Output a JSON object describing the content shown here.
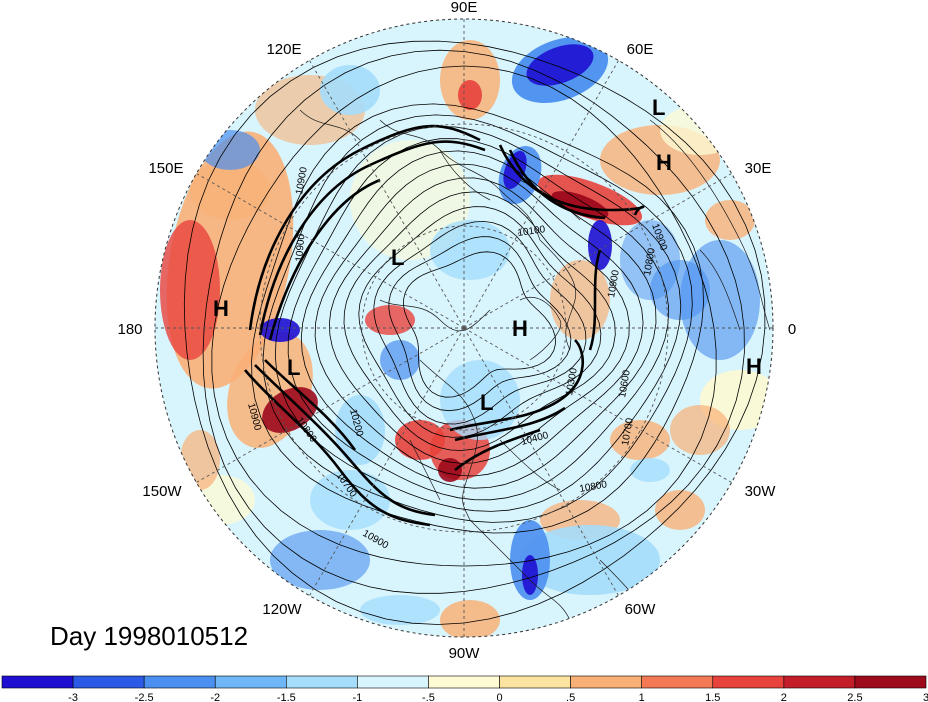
{
  "title": "Day 1998010512",
  "longitude_labels": [
    "90E",
    "120E",
    "60E",
    "150E",
    "30E",
    "180",
    "0",
    "150W",
    "30W",
    "120W",
    "60W",
    "90W"
  ],
  "pressure_centers": [
    "L",
    "H",
    "L",
    "H",
    "H",
    "L",
    "H",
    "L"
  ],
  "contour_labels": [
    "10900",
    "10900",
    "10100",
    "10800",
    "10900",
    "10900",
    "10300",
    "10900",
    "10200",
    "10800",
    "10600",
    "10700",
    "10400",
    "10700",
    "10800",
    "10900"
  ],
  "colorbar": {
    "tick_labels": [
      "-3",
      "-2.5",
      "-2",
      "-1.5",
      "-1",
      "-.5",
      "0",
      ".5",
      "1",
      "1.5",
      "2",
      "2.5",
      "3"
    ],
    "colors": [
      "#1e0fd2",
      "#2a5ae6",
      "#4b8ff0",
      "#6fb6f6",
      "#a5ddfb",
      "#d8f4fd",
      "#fdfad4",
      "#fce3a0",
      "#f9b077",
      "#f37a55",
      "#e8423c",
      "#c41d2a",
      "#9c0a1c"
    ]
  },
  "fill_colors": {
    "deep_blue": "#1e0fd2",
    "blue": "#4b8ff0",
    "light_blue": "#a5ddfb",
    "pale": "#d8f4fd",
    "cream": "#fdfad4",
    "orange": "#f9b077",
    "red": "#e8423c",
    "dark_red": "#9c0a1c"
  }
}
